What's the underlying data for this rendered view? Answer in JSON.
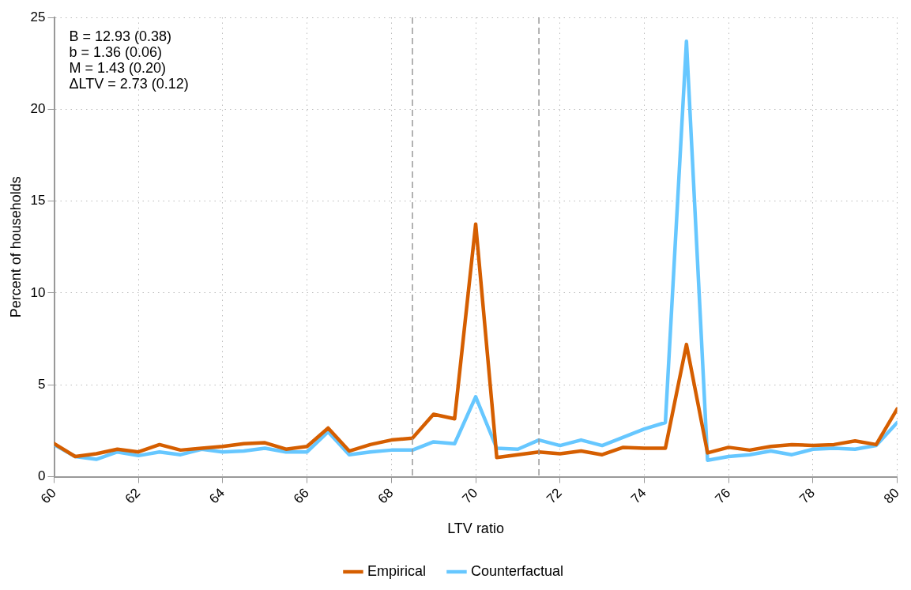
{
  "chart_data": {
    "type": "line",
    "xlabel": "LTV ratio",
    "ylabel": "Percent of households",
    "x": [
      60,
      60.5,
      61,
      61.5,
      62,
      62.5,
      63,
      63.5,
      64,
      64.5,
      65,
      65.5,
      66,
      66.5,
      67,
      67.5,
      68,
      68.5,
      69,
      69.5,
      70,
      70.5,
      71,
      71.5,
      72,
      72.5,
      73,
      73.5,
      74,
      74.5,
      75,
      75.5,
      76,
      76.5,
      77,
      77.5,
      78,
      78.5,
      79,
      79.5,
      80
    ],
    "series": [
      {
        "name": "Empirical",
        "color": "#d55e00",
        "values": [
          1.8,
          1.1,
          1.25,
          1.5,
          1.35,
          1.75,
          1.45,
          1.55,
          1.65,
          1.8,
          1.85,
          1.5,
          1.65,
          2.65,
          1.4,
          1.75,
          2.0,
          2.1,
          3.4,
          3.15,
          13.75,
          1.05,
          1.2,
          1.35,
          1.25,
          1.4,
          1.2,
          1.6,
          1.55,
          1.55,
          7.2,
          1.3,
          1.6,
          1.45,
          1.65,
          1.75,
          1.7,
          1.75,
          1.95,
          1.75,
          3.7
        ]
      },
      {
        "name": "Counterfactual",
        "color": "#66c7ff",
        "values": [
          1.75,
          1.1,
          0.95,
          1.35,
          1.15,
          1.35,
          1.2,
          1.5,
          1.35,
          1.4,
          1.55,
          1.35,
          1.35,
          2.45,
          1.2,
          1.35,
          1.45,
          1.45,
          1.9,
          1.8,
          4.35,
          1.55,
          1.5,
          2.0,
          1.7,
          2.0,
          1.7,
          2.15,
          2.6,
          2.95,
          23.7,
          0.9,
          1.1,
          1.2,
          1.4,
          1.2,
          1.5,
          1.55,
          1.5,
          1.7,
          2.95
        ]
      }
    ],
    "xlim": [
      60,
      80
    ],
    "xticks": [
      60,
      62,
      64,
      66,
      68,
      70,
      72,
      74,
      76,
      78,
      80
    ],
    "ylim": [
      0,
      25
    ],
    "yticks": [
      0,
      5,
      10,
      15,
      20,
      25
    ],
    "ref_lines": [
      {
        "axis": "x",
        "value": 68.5,
        "color": "#999999",
        "line_style": "dashed"
      },
      {
        "axis": "x",
        "value": 71.5,
        "color": "#999999",
        "line_style": "dashed"
      }
    ],
    "annotations": [
      "B = 12.93 (0.38)",
      "b = 1.36 (0.06)",
      "M = 1.43 (0.20)",
      "ΔLTV = 2.73 (0.12)"
    ],
    "grid": true,
    "legend": "bottom",
    "marker": "none",
    "line_style": "solid"
  }
}
